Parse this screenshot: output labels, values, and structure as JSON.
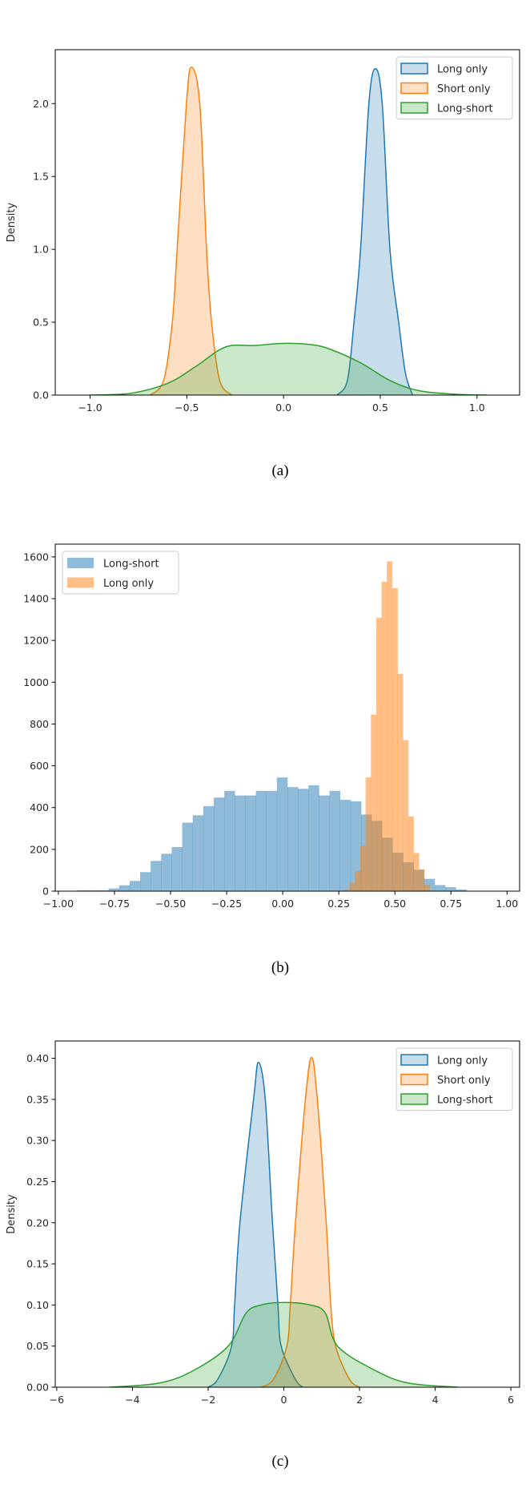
{
  "chart_data": [
    {
      "type": "area",
      "subtype": "kde",
      "caption": "(a)",
      "xlabel": "",
      "ylabel": "Density",
      "xlim": [
        -1.18,
        1.22
      ],
      "ylim": [
        0,
        2.37
      ],
      "xticks": [
        -1.0,
        -0.5,
        0.0,
        0.5,
        1.0
      ],
      "xtick_labels": [
        "−1.0",
        "−0.5",
        "0.0",
        "0.5",
        "1.0"
      ],
      "yticks": [
        0.0,
        0.5,
        1.0,
        1.5,
        2.0
      ],
      "ytick_labels": [
        "0.0",
        "0.5",
        "1.0",
        "1.5",
        "2.0"
      ],
      "grid": false,
      "legend": {
        "placement": "upper-right",
        "entries": [
          "Long only",
          "Short only",
          "Long-short"
        ]
      },
      "series": [
        {
          "name": "Long only",
          "color": "#1f77b4",
          "x": [
            0.277,
            0.33,
            0.364,
            0.398,
            0.441,
            0.475,
            0.51,
            0.55,
            0.595,
            0.63,
            0.667
          ],
          "y": [
            0,
            0.1,
            0.5,
            1.0,
            2.0,
            2.24,
            2.0,
            1.0,
            0.5,
            0.15,
            0
          ]
        },
        {
          "name": "Short only",
          "color": "#ff7f0e",
          "x": [
            -0.69,
            -0.62,
            -0.575,
            -0.55,
            -0.502,
            -0.476,
            -0.433,
            -0.398,
            -0.372,
            -0.33,
            -0.268
          ],
          "y": [
            0,
            0.1,
            0.5,
            1.0,
            2.0,
            2.25,
            2.0,
            1.0,
            0.5,
            0.1,
            0
          ]
        },
        {
          "name": "Long-short",
          "color": "#2ca02c",
          "x": [
            -1.0,
            -0.8,
            -0.6,
            -0.45,
            -0.3,
            -0.15,
            0.0,
            0.15,
            0.25,
            0.4,
            0.55,
            0.7,
            0.9,
            1.05
          ],
          "y": [
            0,
            0.01,
            0.08,
            0.2,
            0.33,
            0.34,
            0.355,
            0.345,
            0.31,
            0.22,
            0.1,
            0.03,
            0.005,
            0
          ]
        }
      ]
    },
    {
      "type": "bar",
      "subtype": "histogram",
      "caption": "(b)",
      "xlabel": "",
      "ylabel": "",
      "xlim": [
        -1.014,
        1.056
      ],
      "ylim": [
        0,
        1661
      ],
      "xticks": [
        -1.0,
        -0.75,
        -0.5,
        -0.25,
        0.0,
        0.25,
        0.5,
        0.75,
        1.0
      ],
      "xtick_labels": [
        "−1.00",
        "−0.75",
        "−0.50",
        "−0.25",
        "0.00",
        "0.25",
        "0.50",
        "0.75",
        "1.00"
      ],
      "yticks": [
        0,
        200,
        400,
        600,
        800,
        1000,
        1200,
        1400,
        1600
      ],
      "ytick_labels": [
        "0",
        "200",
        "400",
        "600",
        "800",
        "1000",
        "1200",
        "1400",
        "1600"
      ],
      "grid": false,
      "legend": {
        "placement": "upper-left",
        "entries": [
          "Long-short",
          "Long only"
        ]
      },
      "series": [
        {
          "name": "Long-short",
          "color": "#1f77b4",
          "bin_start": -0.917,
          "bin_width": 0.0469,
          "counts": [
            4,
            4,
            4,
            13,
            28,
            49,
            91,
            145,
            179,
            211,
            328,
            363,
            407,
            448,
            480,
            458,
            458,
            480,
            480,
            544,
            498,
            490,
            507,
            458,
            480,
            437,
            430,
            367,
            337,
            256,
            184,
            138,
            102,
            59,
            29,
            19,
            8
          ]
        },
        {
          "name": "Long only",
          "color": "#ff7f0e",
          "bin_start": 0.274,
          "bin_width": 0.0238,
          "counts": [
            6,
            40,
            97,
            219,
            545,
            845,
            1309,
            1481,
            1579,
            1450,
            1040,
            723,
            358,
            183,
            105,
            29,
            4
          ]
        }
      ]
    },
    {
      "type": "area",
      "subtype": "kde",
      "caption": "(c)",
      "xlabel": "",
      "ylabel": "Density",
      "xlim": [
        -6.04,
        6.23
      ],
      "ylim": [
        0,
        0.421
      ],
      "xticks": [
        -6,
        -4,
        -2,
        0,
        2,
        4,
        6
      ],
      "xtick_labels": [
        "−6",
        "−4",
        "−2",
        "0",
        "2",
        "4",
        "6"
      ],
      "yticks": [
        0.0,
        0.05,
        0.1,
        0.15,
        0.2,
        0.25,
        0.3,
        0.35,
        0.4
      ],
      "ytick_labels": [
        "0.00",
        "0.05",
        "0.10",
        "0.15",
        "0.20",
        "0.25",
        "0.30",
        "0.35",
        "0.40"
      ],
      "grid": false,
      "legend": {
        "placement": "upper-right",
        "entries": [
          "Long only",
          "Short only",
          "Long-short"
        ]
      },
      "series": [
        {
          "name": "Long only",
          "color": "#1f77b4",
          "x": [
            -2.0,
            -1.74,
            -1.38,
            -1.3,
            -1.16,
            -0.8,
            -0.67,
            -0.49,
            -0.3,
            -0.155,
            -0.07,
            0.3,
            0.5
          ],
          "y": [
            0,
            0.01,
            0.05,
            0.1,
            0.2,
            0.35,
            0.395,
            0.35,
            0.2,
            0.1,
            0.05,
            0.01,
            0
          ]
        },
        {
          "name": "Short only",
          "color": "#ff7f0e",
          "x": [
            -0.6,
            -0.27,
            0.08,
            0.17,
            0.307,
            0.57,
            0.733,
            0.885,
            1.12,
            1.24,
            1.37,
            1.73,
            2.0
          ],
          "y": [
            0,
            0.01,
            0.05,
            0.1,
            0.2,
            0.35,
            0.401,
            0.35,
            0.2,
            0.1,
            0.05,
            0.01,
            0
          ]
        },
        {
          "name": "Long-short",
          "color": "#2ca02c",
          "x": [
            -4.6,
            -3.3,
            -2.4,
            -1.47,
            -1.0,
            -0.6,
            0.0,
            0.7,
            1.1,
            1.42,
            2.43,
            3.3,
            4.6
          ],
          "y": [
            0,
            0.005,
            0.02,
            0.05,
            0.09,
            0.1,
            0.103,
            0.1,
            0.09,
            0.05,
            0.02,
            0.005,
            0
          ]
        }
      ]
    }
  ]
}
